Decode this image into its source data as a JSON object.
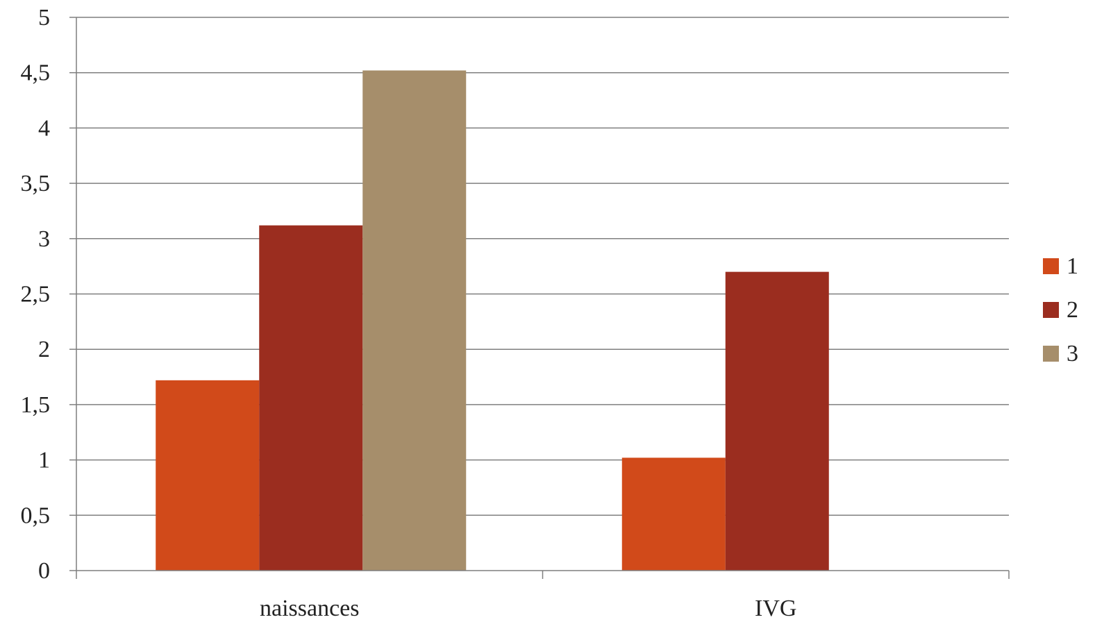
{
  "chart_data": {
    "type": "bar",
    "title": "",
    "xlabel": "",
    "ylabel": "",
    "categories": [
      "naissances",
      "IVG"
    ],
    "series": [
      {
        "name": "1",
        "color": "#D14A1A",
        "values": [
          1.72,
          1.02
        ]
      },
      {
        "name": "2",
        "color": "#9B2D1F",
        "values": [
          3.12,
          2.7
        ]
      },
      {
        "name": "3",
        "color": "#A68E6B",
        "values": [
          4.52,
          null
        ]
      }
    ],
    "ylim": [
      0,
      5
    ],
    "yticks": [
      "0",
      "0,5",
      "1",
      "1,5",
      "2",
      "2,5",
      "3",
      "3,5",
      "4",
      "4,5",
      "5"
    ],
    "grid": true,
    "legend": "right",
    "colors": {
      "grid": "#7f7f7f",
      "axis": "#7f7f7f"
    }
  }
}
